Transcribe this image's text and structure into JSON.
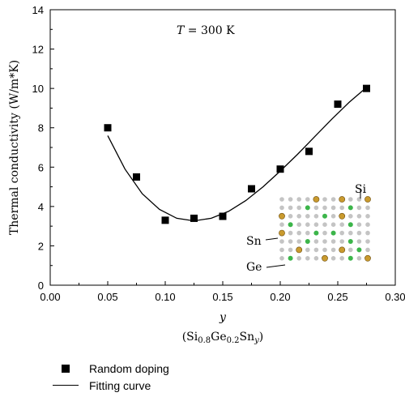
{
  "chart_data": {
    "type": "scatter",
    "x": [
      0.05,
      0.075,
      0.1,
      0.125,
      0.15,
      0.175,
      0.2,
      0.225,
      0.25,
      0.275
    ],
    "y": [
      8.0,
      5.5,
      3.3,
      3.4,
      3.5,
      4.9,
      5.9,
      6.8,
      9.2,
      10.0
    ],
    "fit_curve": {
      "x": [
        0.05,
        0.065,
        0.08,
        0.095,
        0.11,
        0.125,
        0.14,
        0.155,
        0.17,
        0.185,
        0.2,
        0.215,
        0.23,
        0.245,
        0.26,
        0.275
      ],
      "y": [
        7.6,
        5.9,
        4.65,
        3.85,
        3.4,
        3.27,
        3.4,
        3.75,
        4.3,
        5.0,
        5.8,
        6.65,
        7.55,
        8.45,
        9.3,
        10.05
      ]
    },
    "title": "",
    "xlabel": "y",
    "xlabel_sub": "(Si0.8Ge0.2Sny)",
    "ylabel": "Thermal conductivity (W/m*K)",
    "xlim": [
      0.0,
      0.3
    ],
    "ylim": [
      0,
      14
    ],
    "xticks": [
      "0.00",
      "0.05",
      "0.10",
      "0.15",
      "0.20",
      "0.25",
      "0.30"
    ],
    "yticks": [
      "0",
      "2",
      "4",
      "6",
      "8",
      "10",
      "12",
      "14"
    ],
    "grid": false,
    "legend": {
      "placement": "bottom-left",
      "entries": [
        {
          "label": "Random doping",
          "marker": "square"
        },
        {
          "label": "Fitting curve",
          "marker": "line"
        }
      ]
    },
    "annotation": {
      "symbol": "T",
      "rest": " = 300 K"
    },
    "inset_labels": {
      "si": "Si",
      "sn": "Sn",
      "ge": "Ge"
    },
    "colors": {
      "sn_atom": "#c99a2e",
      "ge_atom": "#3cb54a",
      "si_atom": "#c4c4c4",
      "marker": "#000000"
    }
  }
}
